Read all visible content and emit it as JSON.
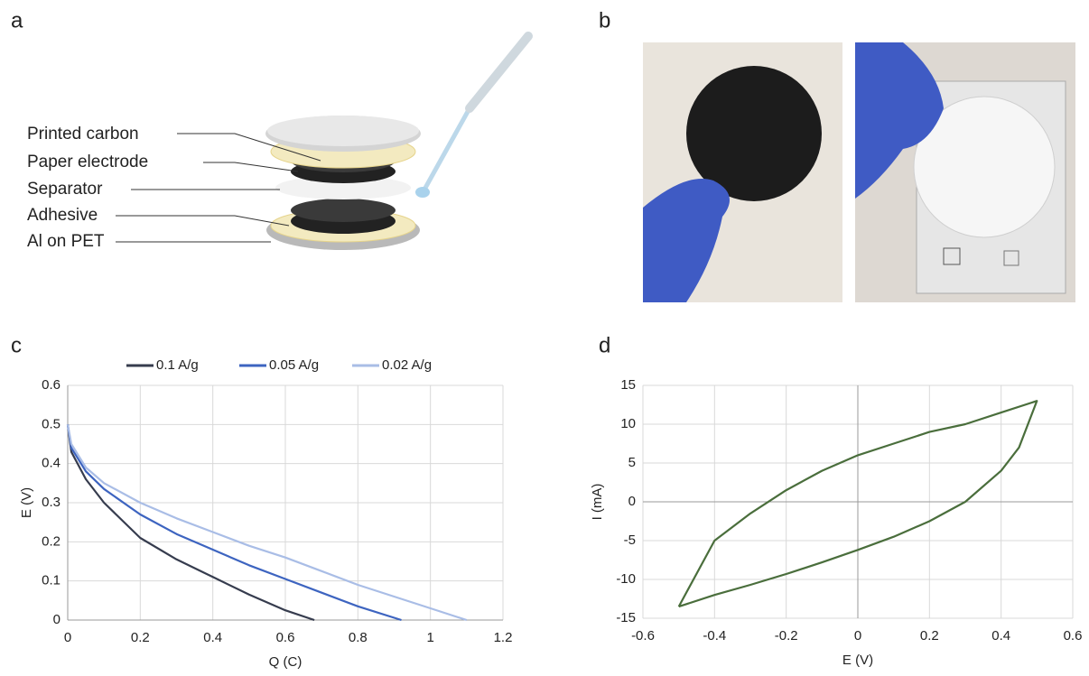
{
  "panel_labels": {
    "a": "a",
    "b": "b",
    "c": "c",
    "d": "d"
  },
  "diagram": {
    "labels": [
      "Printed carbon",
      "Paper electrode",
      "Separator",
      "Adhesive",
      "Al on PET"
    ]
  },
  "chart_data": [
    {
      "type": "line",
      "xlabel": "Q (C)",
      "ylabel": "E (V)",
      "legend": "top",
      "grid": true,
      "xlim": [
        0,
        1.2
      ],
      "xticks": [
        0,
        0.2,
        0.4,
        0.6,
        0.8,
        1,
        1.2
      ],
      "ylim": [
        0,
        0.6
      ],
      "yticks": [
        0,
        0.1,
        0.2,
        0.3,
        0.4,
        0.5,
        0.6
      ],
      "series": [
        {
          "name": "0.1 A/g",
          "color": "#363c4e",
          "x": [
            0,
            0.01,
            0.05,
            0.1,
            0.2,
            0.3,
            0.4,
            0.5,
            0.6,
            0.68
          ],
          "values": [
            0.5,
            0.43,
            0.36,
            0.3,
            0.21,
            0.155,
            0.11,
            0.065,
            0.025,
            0
          ]
        },
        {
          "name": "0.05 A/g",
          "color": "#3d64c0",
          "x": [
            0,
            0.01,
            0.05,
            0.1,
            0.2,
            0.3,
            0.4,
            0.5,
            0.6,
            0.7,
            0.8,
            0.92
          ],
          "values": [
            0.5,
            0.44,
            0.38,
            0.335,
            0.27,
            0.22,
            0.18,
            0.14,
            0.105,
            0.07,
            0.035,
            0
          ]
        },
        {
          "name": "0.02 A/g",
          "color": "#a9bde6",
          "x": [
            0,
            0.01,
            0.05,
            0.1,
            0.2,
            0.3,
            0.4,
            0.5,
            0.6,
            0.7,
            0.8,
            0.9,
            1,
            1.1
          ],
          "values": [
            0.5,
            0.45,
            0.39,
            0.35,
            0.3,
            0.26,
            0.225,
            0.19,
            0.16,
            0.125,
            0.09,
            0.06,
            0.03,
            0
          ]
        }
      ]
    },
    {
      "type": "line",
      "xlabel": "E (V)",
      "ylabel": "I (mA)",
      "grid": true,
      "xlim": [
        -0.6,
        0.6
      ],
      "xticks": [
        -0.6,
        -0.4,
        -0.2,
        0,
        0.2,
        0.4,
        0.6
      ],
      "ylim": [
        -15,
        15
      ],
      "yticks": [
        -15,
        -10,
        -5,
        0,
        5,
        10,
        15
      ],
      "series": [
        {
          "color": "#4a6e3c",
          "x": [
            -0.5,
            -0.4,
            -0.3,
            -0.2,
            -0.1,
            0,
            0.1,
            0.2,
            0.3,
            0.4,
            0.5,
            0.45,
            0.4,
            0.3,
            0.2,
            0.1,
            0,
            -0.1,
            -0.2,
            -0.3,
            -0.4,
            -0.5
          ],
          "values": [
            -13.5,
            -5,
            -1.5,
            1.5,
            4,
            6,
            7.5,
            9,
            10,
            11.5,
            13,
            7,
            4,
            0,
            -2.5,
            -4.5,
            -6.2,
            -7.8,
            -9.3,
            -10.7,
            -12,
            -13.5
          ]
        }
      ]
    }
  ]
}
